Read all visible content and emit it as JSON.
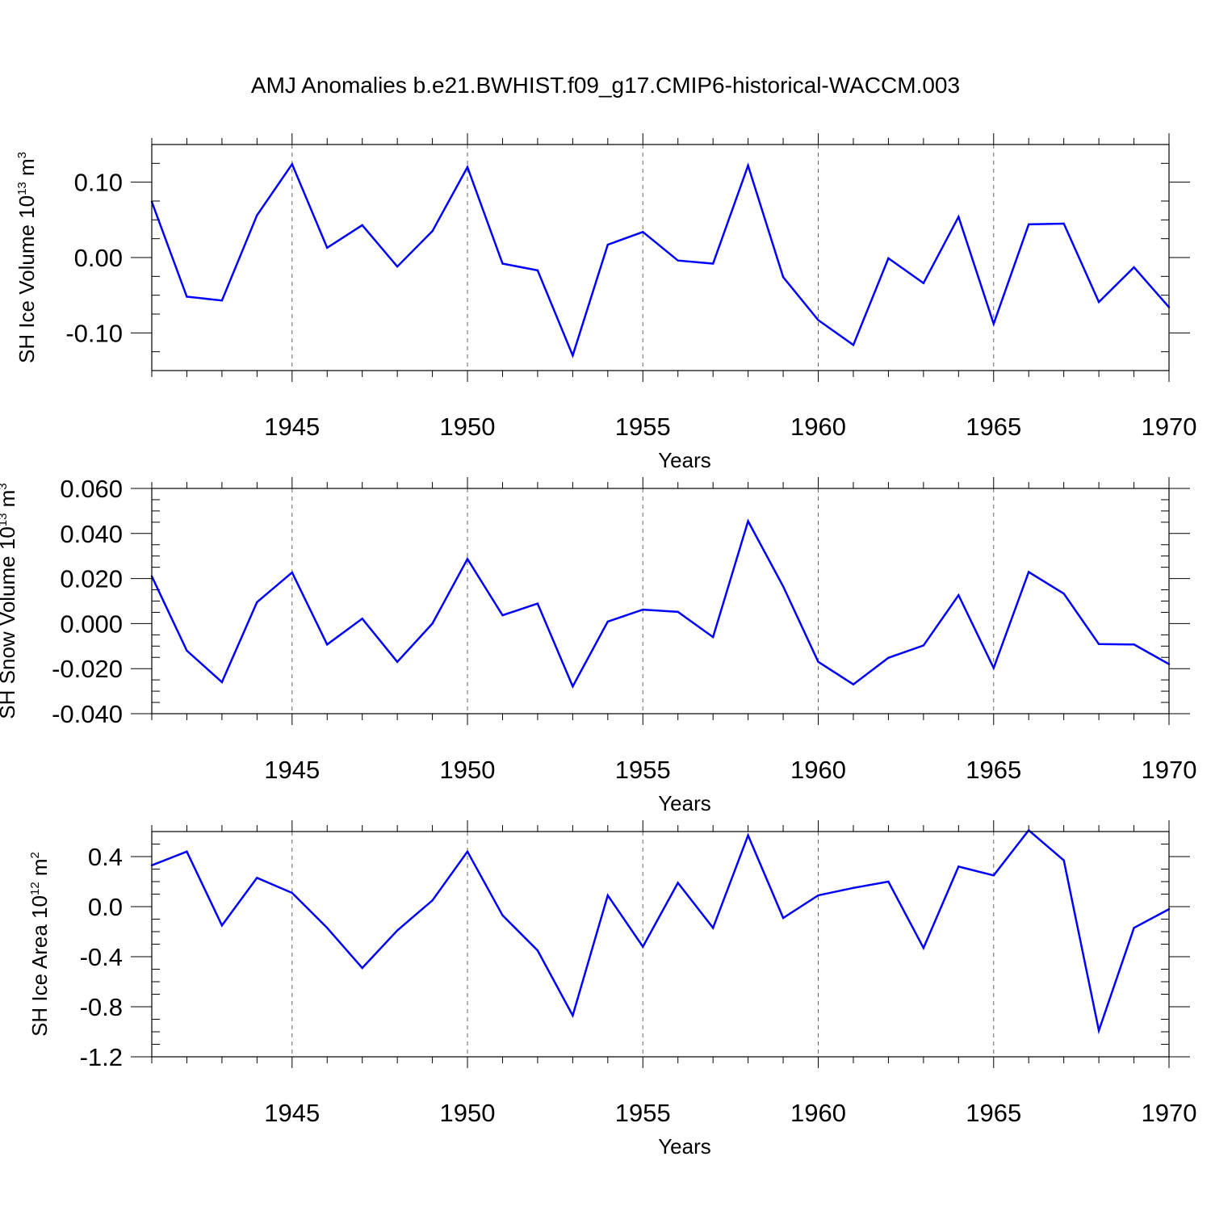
{
  "figure": {
    "title": "AMJ Anomalies b.e21.BWHIST.f09_g17.CMIP6-historical-WACCM.003",
    "line_color": "#0000ff",
    "grid_color": "#666666"
  },
  "chart_data": [
    {
      "type": "line",
      "title": "AMJ Anomalies b.e21.BWHIST.f09_g17.CMIP6-historical-WACCM.003",
      "xlabel": "Years",
      "ylabel": "SH Ice Volume 10",
      "ylabel_exp": "13",
      "ylabel_unit": " m",
      "ylabel_unit_exp": "3",
      "xlim": [
        1941,
        1970
      ],
      "ylim": [
        -0.15,
        0.15
      ],
      "x_ticks": [
        1945,
        1950,
        1955,
        1960,
        1965,
        1970
      ],
      "y_ticks": [
        -0.1,
        0.0,
        0.1
      ],
      "y_tick_labels": [
        "-0.10",
        "0.00",
        "0.10"
      ],
      "grid": "vertical dashed at major x ticks",
      "x": [
        1941,
        1942,
        1943,
        1944,
        1945,
        1946,
        1947,
        1948,
        1949,
        1950,
        1951,
        1952,
        1953,
        1954,
        1955,
        1956,
        1957,
        1958,
        1959,
        1960,
        1961,
        1962,
        1963,
        1964,
        1965,
        1966,
        1967,
        1968,
        1969,
        1970
      ],
      "values": [
        0.074,
        -0.052,
        -0.057,
        0.056,
        0.124,
        0.013,
        0.043,
        -0.012,
        0.035,
        0.12,
        -0.008,
        -0.017,
        -0.13,
        0.017,
        0.034,
        -0.004,
        -0.008,
        0.122,
        -0.026,
        -0.083,
        -0.116,
        -0.001,
        -0.034,
        0.054,
        -0.088,
        0.044,
        0.045,
        -0.059,
        -0.013,
        -0.066
      ]
    },
    {
      "type": "line",
      "xlabel": "Years",
      "ylabel": "SH Snow Volume 10",
      "ylabel_exp": "13",
      "ylabel_unit": " m",
      "ylabel_unit_exp": "3",
      "xlim": [
        1941,
        1970
      ],
      "ylim": [
        -0.04,
        0.06
      ],
      "x_ticks": [
        1945,
        1950,
        1955,
        1960,
        1965,
        1970
      ],
      "y_ticks": [
        -0.04,
        -0.02,
        0.0,
        0.02,
        0.04,
        0.06
      ],
      "y_tick_labels": [
        "-0.040",
        "-0.020",
        "0.000",
        "0.020",
        "0.040",
        "0.060"
      ],
      "grid": "vertical dashed at major x ticks",
      "x": [
        1941,
        1942,
        1943,
        1944,
        1945,
        1946,
        1947,
        1948,
        1949,
        1950,
        1951,
        1952,
        1953,
        1954,
        1955,
        1956,
        1957,
        1958,
        1959,
        1960,
        1961,
        1962,
        1963,
        1964,
        1965,
        1966,
        1967,
        1968,
        1969,
        1970
      ],
      "values": [
        0.021,
        -0.012,
        -0.026,
        0.0095,
        0.0227,
        -0.0093,
        0.0022,
        -0.017,
        0.0,
        0.0287,
        0.0037,
        0.0089,
        -0.0279,
        0.0009,
        0.0062,
        0.0052,
        -0.006,
        0.0455,
        0.0165,
        -0.017,
        -0.027,
        -0.0152,
        -0.0097,
        0.0126,
        -0.0197,
        0.0229,
        0.0133,
        -0.0091,
        -0.0093,
        -0.018
      ]
    },
    {
      "type": "line",
      "xlabel": "Years",
      "ylabel": "SH Ice Area 10",
      "ylabel_exp": "12",
      "ylabel_unit": " m",
      "ylabel_unit_exp": "2",
      "xlim": [
        1941,
        1970
      ],
      "ylim": [
        -1.2,
        0.6
      ],
      "x_ticks": [
        1945,
        1950,
        1955,
        1960,
        1965,
        1970
      ],
      "y_ticks": [
        -1.2,
        -0.8,
        -0.4,
        0.0,
        0.4
      ],
      "y_tick_labels": [
        "-1.2",
        "-0.8",
        "-0.4",
        "0.0",
        "0.4"
      ],
      "grid": "vertical dashed at major x ticks",
      "x": [
        1941,
        1942,
        1943,
        1944,
        1945,
        1946,
        1947,
        1948,
        1949,
        1950,
        1951,
        1952,
        1953,
        1954,
        1955,
        1956,
        1957,
        1958,
        1959,
        1960,
        1961,
        1962,
        1963,
        1964,
        1965,
        1966,
        1967,
        1968,
        1969,
        1970
      ],
      "values": [
        0.33,
        0.44,
        -0.15,
        0.23,
        0.11,
        -0.17,
        -0.49,
        -0.19,
        0.05,
        0.44,
        -0.07,
        -0.35,
        -0.87,
        0.09,
        -0.32,
        0.19,
        -0.17,
        0.57,
        -0.09,
        0.09,
        0.15,
        0.2,
        -0.33,
        0.32,
        0.25,
        0.61,
        0.37,
        -0.99,
        -0.17,
        -0.02
      ]
    }
  ]
}
